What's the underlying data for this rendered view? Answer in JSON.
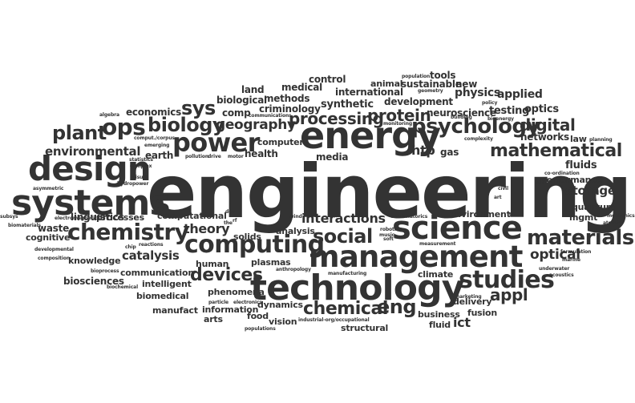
{
  "cloud": {
    "words": [
      {
        "text": "engineering"
      },
      {
        "text": "technology"
      },
      {
        "text": "management"
      },
      {
        "text": "science"
      },
      {
        "text": "energy"
      },
      {
        "text": "systems"
      },
      {
        "text": "design"
      },
      {
        "text": "materials"
      },
      {
        "text": "chemistry"
      },
      {
        "text": "computing"
      },
      {
        "text": "studies"
      },
      {
        "text": "social"
      },
      {
        "text": "psychology"
      },
      {
        "text": "power"
      },
      {
        "text": "mathematical"
      },
      {
        "text": "biology"
      },
      {
        "text": "processing"
      },
      {
        "text": "devices"
      },
      {
        "text": "chemical"
      },
      {
        "text": "protein"
      },
      {
        "text": "digital"
      },
      {
        "text": "ops"
      },
      {
        "text": "plant"
      },
      {
        "text": "sys"
      },
      {
        "text": "environmental"
      },
      {
        "text": "geography"
      },
      {
        "text": "interactions"
      },
      {
        "text": "catalysis"
      },
      {
        "text": "storage"
      },
      {
        "text": "optical"
      },
      {
        "text": "eng"
      },
      {
        "text": "appl"
      },
      {
        "text": "ict"
      },
      {
        "text": "theory"
      },
      {
        "text": "physics"
      },
      {
        "text": "applied"
      },
      {
        "text": "fluids"
      },
      {
        "text": "networks"
      },
      {
        "text": "htp"
      },
      {
        "text": "synthetic"
      },
      {
        "text": "testing"
      },
      {
        "text": "optics"
      },
      {
        "text": "neuroscience"
      },
      {
        "text": "international"
      },
      {
        "text": "development"
      },
      {
        "text": "sustainable"
      },
      {
        "text": "animal"
      },
      {
        "text": "new"
      },
      {
        "text": "tools"
      },
      {
        "text": "control"
      },
      {
        "text": "medical"
      },
      {
        "text": "land"
      },
      {
        "text": "biological"
      },
      {
        "text": "methods"
      },
      {
        "text": "criminology"
      },
      {
        "text": "economics"
      },
      {
        "text": "comp"
      },
      {
        "text": "computer"
      },
      {
        "text": "health"
      },
      {
        "text": "media"
      },
      {
        "text": "gas"
      },
      {
        "text": "earth"
      },
      {
        "text": "linguistics"
      },
      {
        "text": "waste"
      },
      {
        "text": "cognitive"
      },
      {
        "text": "processes"
      },
      {
        "text": "computational"
      },
      {
        "text": "knowledge"
      },
      {
        "text": "human"
      },
      {
        "text": "solids"
      },
      {
        "text": "plasmas"
      },
      {
        "text": "analysis"
      },
      {
        "text": "environment"
      },
      {
        "text": "performance"
      },
      {
        "text": "quantum"
      },
      {
        "text": "mgmt"
      },
      {
        "text": "law"
      },
      {
        "text": "biosciences"
      },
      {
        "text": "communication"
      },
      {
        "text": "intelligent"
      },
      {
        "text": "biomedical"
      },
      {
        "text": "phenomena"
      },
      {
        "text": "manufact"
      },
      {
        "text": "information"
      },
      {
        "text": "dynamics"
      },
      {
        "text": "arts"
      },
      {
        "text": "food"
      },
      {
        "text": "vision"
      },
      {
        "text": "business"
      },
      {
        "text": "fluid"
      },
      {
        "text": "structural"
      },
      {
        "text": "delivery"
      },
      {
        "text": "fusion"
      },
      {
        "text": "climate"
      },
      {
        "text": "statistics"
      },
      {
        "text": "algebra"
      },
      {
        "text": "complex"
      },
      {
        "text": "hydropower"
      },
      {
        "text": "asymmetric"
      },
      {
        "text": "electromagnetics"
      },
      {
        "text": "biomaterials"
      },
      {
        "text": "subsys"
      },
      {
        "text": "developmental"
      },
      {
        "text": "composition"
      },
      {
        "text": "bioprocess"
      },
      {
        "text": "biochemical"
      },
      {
        "text": "chip"
      },
      {
        "text": "reactions"
      },
      {
        "text": "visual"
      },
      {
        "text": "emerging"
      },
      {
        "text": "comput./corpus"
      },
      {
        "text": "communications"
      },
      {
        "text": "pollution"
      },
      {
        "text": "drive"
      },
      {
        "text": "motor"
      },
      {
        "text": "dev"
      },
      {
        "text": "the"
      },
      {
        "text": "rf"
      },
      {
        "text": "wind"
      },
      {
        "text": "anthropology"
      },
      {
        "text": "manufacturing"
      },
      {
        "text": "particle"
      },
      {
        "text": "electronics"
      },
      {
        "text": "populations"
      },
      {
        "text": "industrial-org/occupational"
      },
      {
        "text": "robotics"
      },
      {
        "text": "music"
      },
      {
        "text": "soft"
      },
      {
        "text": "combinatorics"
      },
      {
        "text": "measurement"
      },
      {
        "text": "marketing"
      },
      {
        "text": "population"
      },
      {
        "text": "geometry"
      },
      {
        "text": "building"
      },
      {
        "text": "monitoring"
      },
      {
        "text": "complexity"
      },
      {
        "text": "policy"
      },
      {
        "text": "bioenergy"
      },
      {
        "text": "civil"
      },
      {
        "text": "art"
      },
      {
        "text": "soil"
      },
      {
        "text": "to"
      },
      {
        "text": "planning"
      },
      {
        "text": "co-ordination"
      },
      {
        "text": "mechanics"
      },
      {
        "text": "atomic"
      },
      {
        "text": "formulation"
      },
      {
        "text": "marine"
      },
      {
        "text": "underwater"
      },
      {
        "text": "acoustics"
      }
    ]
  }
}
